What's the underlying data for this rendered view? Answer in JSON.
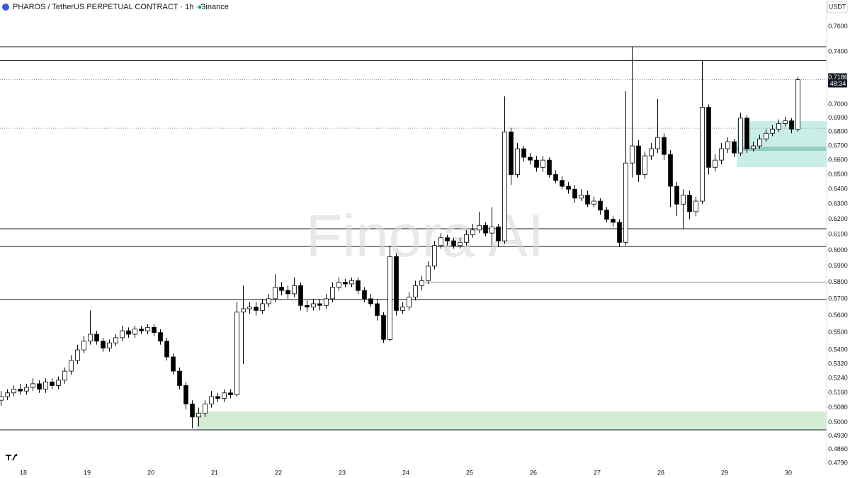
{
  "chart_data": {
    "type": "candlestick",
    "title": "PHAROS / TetherUS PERPETUAL CONTRACT · 1h · Binance",
    "axis_unit": "USDT",
    "watermark": "Finora AI",
    "last_price": 0.7186,
    "countdown": "48:34",
    "log_scale": true,
    "up_color": "#ffffff",
    "down_color": "#000000",
    "wick_color": "#000000",
    "xlim": [
      17.633,
      30.6
    ],
    "ylim": [
      0.4769,
      0.7818
    ],
    "xticks": [
      18,
      19,
      20,
      21,
      22,
      23,
      24,
      25,
      26,
      27,
      28,
      29,
      30
    ],
    "yticks": [
      {
        "value": 0.76,
        "label": "0.7600"
      },
      {
        "value": 0.74,
        "label": "0.7400"
      },
      {
        "value": 0.7,
        "label": "0.7000"
      },
      {
        "value": 0.69,
        "label": "0.6900"
      },
      {
        "value": 0.68,
        "label": "0.6800"
      },
      {
        "value": 0.67,
        "label": "0.6700"
      },
      {
        "value": 0.66,
        "label": "0.6600"
      },
      {
        "value": 0.65,
        "label": "0.6500"
      },
      {
        "value": 0.64,
        "label": "0.6400"
      },
      {
        "value": 0.63,
        "label": "0.6300"
      },
      {
        "value": 0.62,
        "label": "0.6200"
      },
      {
        "value": 0.61,
        "label": "0.6100"
      },
      {
        "value": 0.6,
        "label": "0.6000"
      },
      {
        "value": 0.59,
        "label": "0.5900"
      },
      {
        "value": 0.58,
        "label": "0.5800"
      },
      {
        "value": 0.57,
        "label": "0.5700"
      },
      {
        "value": 0.56,
        "label": "0.5600"
      },
      {
        "value": 0.55,
        "label": "0.5500"
      },
      {
        "value": 0.54,
        "label": "0.5400"
      },
      {
        "value": 0.532,
        "label": "0.5320"
      },
      {
        "value": 0.524,
        "label": "0.5240"
      },
      {
        "value": 0.516,
        "label": "0.5160"
      },
      {
        "value": 0.508,
        "label": "0.5080"
      },
      {
        "value": 0.5,
        "label": "0.5000"
      },
      {
        "value": 0.493,
        "label": "0.4930"
      },
      {
        "value": 0.486,
        "label": "0.4860"
      },
      {
        "value": 0.479,
        "label": "0.4790"
      }
    ],
    "levels": [
      0.7441,
      0.7334,
      0.6138,
      0.6024,
      0.5696,
      0.4962
    ],
    "dotted_levels": [
      0.7186,
      0.6826
    ],
    "zones": [
      {
        "x": 20.72,
        "low": 0.4962,
        "high": 0.5059,
        "color": "#d4ecd4"
      },
      {
        "x": 29.19,
        "low": 0.6551,
        "high": 0.6879,
        "color": "#c9eee6"
      },
      {
        "x": 29.19,
        "low": 0.6665,
        "high": 0.6695,
        "color": "#8ecfc0"
      },
      {
        "x": 24.3,
        "low": 0.5795,
        "high": 0.5804,
        "color": "#c8c8d0"
      }
    ],
    "x": [
      17.65,
      17.75,
      17.85,
      17.95,
      18.05,
      18.15,
      18.25,
      18.35,
      18.45,
      18.55,
      18.65,
      18.75,
      18.85,
      18.95,
      19.05,
      19.15,
      19.25,
      19.35,
      19.45,
      19.55,
      19.65,
      19.75,
      19.85,
      19.95,
      20.05,
      20.15,
      20.25,
      20.35,
      20.45,
      20.55,
      20.65,
      20.75,
      20.85,
      20.95,
      21.05,
      21.15,
      21.25,
      21.35,
      21.45,
      21.55,
      21.65,
      21.75,
      21.85,
      21.95,
      22.05,
      22.15,
      22.25,
      22.35,
      22.45,
      22.55,
      22.65,
      22.75,
      22.85,
      22.95,
      23.05,
      23.15,
      23.25,
      23.35,
      23.45,
      23.55,
      23.65,
      23.75,
      23.85,
      23.95,
      24.05,
      24.15,
      24.25,
      24.35,
      24.45,
      24.55,
      24.65,
      24.75,
      24.85,
      24.95,
      25.05,
      25.15,
      25.25,
      25.35,
      25.45,
      25.55,
      25.65,
      25.75,
      25.85,
      25.95,
      26.05,
      26.15,
      26.25,
      26.35,
      26.45,
      26.55,
      26.65,
      26.75,
      26.85,
      26.95,
      27.05,
      27.15,
      27.25,
      27.35,
      27.45,
      27.55,
      27.65,
      27.75,
      27.85,
      27.95,
      28.05,
      28.15,
      28.25,
      28.35,
      28.45,
      28.55,
      28.65,
      28.75,
      28.85,
      28.95,
      29.05,
      29.15,
      29.25,
      29.35,
      29.45,
      29.55,
      29.65,
      29.75,
      29.85,
      29.95,
      30.05,
      30.15
    ],
    "open": [
      0.512,
      0.514,
      0.516,
      0.518,
      0.517,
      0.519,
      0.521,
      0.518,
      0.522,
      0.52,
      0.523,
      0.528,
      0.534,
      0.54,
      0.545,
      0.549,
      0.545,
      0.541,
      0.544,
      0.547,
      0.551,
      0.549,
      0.552,
      0.551,
      0.553,
      0.55,
      0.545,
      0.536,
      0.528,
      0.52,
      0.51,
      0.503,
      0.505,
      0.51,
      0.514,
      0.513,
      0.516,
      0.515,
      0.562,
      0.564,
      0.565,
      0.563,
      0.567,
      0.57,
      0.577,
      0.575,
      0.573,
      0.578,
      0.566,
      0.565,
      0.567,
      0.566,
      0.57,
      0.577,
      0.58,
      0.579,
      0.581,
      0.575,
      0.57,
      0.567,
      0.56,
      0.546,
      0.596,
      0.563,
      0.565,
      0.571,
      0.578,
      0.581,
      0.59,
      0.603,
      0.608,
      0.606,
      0.603,
      0.605,
      0.61,
      0.613,
      0.616,
      0.611,
      0.615,
      0.606,
      0.68,
      0.65,
      0.668,
      0.662,
      0.66,
      0.655,
      0.66,
      0.65,
      0.646,
      0.642,
      0.64,
      0.634,
      0.636,
      0.63,
      0.632,
      0.626,
      0.62,
      0.618,
      0.605,
      0.658,
      0.67,
      0.65,
      0.663,
      0.668,
      0.676,
      0.664,
      0.642,
      0.63,
      0.636,
      0.625,
      0.632,
      0.698,
      0.655,
      0.66,
      0.668,
      0.673,
      0.665,
      0.69,
      0.668,
      0.67,
      0.675,
      0.679,
      0.682,
      0.686,
      0.688,
      0.682
    ],
    "high": [
      0.517,
      0.518,
      0.52,
      0.521,
      0.521,
      0.524,
      0.523,
      0.524,
      0.524,
      0.525,
      0.53,
      0.537,
      0.543,
      0.548,
      0.563,
      0.551,
      0.547,
      0.546,
      0.549,
      0.554,
      0.553,
      0.554,
      0.554,
      0.555,
      0.555,
      0.552,
      0.547,
      0.538,
      0.53,
      0.522,
      0.512,
      0.508,
      0.512,
      0.517,
      0.516,
      0.518,
      0.518,
      0.568,
      0.578,
      0.568,
      0.568,
      0.57,
      0.573,
      0.585,
      0.58,
      0.578,
      0.583,
      0.58,
      0.569,
      0.57,
      0.57,
      0.573,
      0.58,
      0.583,
      0.582,
      0.583,
      0.583,
      0.577,
      0.573,
      0.57,
      0.562,
      0.603,
      0.598,
      0.568,
      0.574,
      0.581,
      0.584,
      0.593,
      0.606,
      0.611,
      0.61,
      0.608,
      0.608,
      0.613,
      0.617,
      0.625,
      0.618,
      0.628,
      0.617,
      0.706,
      0.683,
      0.672,
      0.67,
      0.665,
      0.663,
      0.663,
      0.662,
      0.653,
      0.649,
      0.645,
      0.643,
      0.64,
      0.639,
      0.635,
      0.634,
      0.628,
      0.622,
      0.62,
      0.71,
      0.744,
      0.674,
      0.666,
      0.672,
      0.704,
      0.679,
      0.667,
      0.645,
      0.64,
      0.639,
      0.635,
      0.733,
      0.7,
      0.664,
      0.672,
      0.676,
      0.675,
      0.694,
      0.692,
      0.673,
      0.678,
      0.682,
      0.685,
      0.689,
      0.691,
      0.69,
      0.721
    ],
    "low": [
      0.509,
      0.512,
      0.514,
      0.515,
      0.515,
      0.517,
      0.516,
      0.516,
      0.518,
      0.518,
      0.521,
      0.526,
      0.532,
      0.538,
      0.543,
      0.543,
      0.539,
      0.539,
      0.542,
      0.545,
      0.547,
      0.547,
      0.549,
      0.549,
      0.548,
      0.543,
      0.534,
      0.526,
      0.518,
      0.507,
      0.497,
      0.498,
      0.503,
      0.508,
      0.511,
      0.511,
      0.513,
      0.514,
      0.532,
      0.561,
      0.56,
      0.561,
      0.565,
      0.568,
      0.572,
      0.57,
      0.571,
      0.563,
      0.562,
      0.563,
      0.563,
      0.564,
      0.568,
      0.575,
      0.577,
      0.577,
      0.573,
      0.568,
      0.565,
      0.557,
      0.544,
      0.545,
      0.56,
      0.561,
      0.563,
      0.569,
      0.575,
      0.579,
      0.588,
      0.601,
      0.603,
      0.601,
      0.601,
      0.603,
      0.608,
      0.611,
      0.609,
      0.603,
      0.602,
      0.604,
      0.643,
      0.648,
      0.659,
      0.657,
      0.652,
      0.652,
      0.648,
      0.644,
      0.64,
      0.637,
      0.631,
      0.632,
      0.628,
      0.628,
      0.623,
      0.618,
      0.615,
      0.602,
      0.603,
      0.648,
      0.645,
      0.647,
      0.66,
      0.665,
      0.66,
      0.628,
      0.622,
      0.614,
      0.62,
      0.622,
      0.63,
      0.65,
      0.652,
      0.657,
      0.665,
      0.662,
      0.663,
      0.665,
      0.666,
      0.668,
      0.673,
      0.677,
      0.68,
      0.684,
      0.679,
      0.68
    ],
    "close": [
      0.514,
      0.516,
      0.518,
      0.517,
      0.519,
      0.521,
      0.518,
      0.522,
      0.52,
      0.523,
      0.528,
      0.534,
      0.54,
      0.545,
      0.549,
      0.545,
      0.541,
      0.544,
      0.547,
      0.551,
      0.549,
      0.552,
      0.551,
      0.553,
      0.55,
      0.545,
      0.536,
      0.528,
      0.52,
      0.51,
      0.503,
      0.505,
      0.51,
      0.514,
      0.513,
      0.516,
      0.515,
      0.562,
      0.564,
      0.565,
      0.563,
      0.567,
      0.57,
      0.577,
      0.575,
      0.573,
      0.578,
      0.566,
      0.565,
      0.567,
      0.566,
      0.57,
      0.577,
      0.58,
      0.579,
      0.581,
      0.575,
      0.57,
      0.567,
      0.56,
      0.546,
      0.596,
      0.563,
      0.565,
      0.571,
      0.578,
      0.581,
      0.59,
      0.603,
      0.608,
      0.606,
      0.603,
      0.605,
      0.61,
      0.613,
      0.616,
      0.611,
      0.615,
      0.606,
      0.68,
      0.65,
      0.668,
      0.662,
      0.66,
      0.655,
      0.66,
      0.65,
      0.646,
      0.642,
      0.64,
      0.634,
      0.636,
      0.63,
      0.632,
      0.626,
      0.62,
      0.618,
      0.605,
      0.658,
      0.67,
      0.65,
      0.663,
      0.668,
      0.676,
      0.664,
      0.642,
      0.63,
      0.636,
      0.625,
      0.632,
      0.698,
      0.655,
      0.66,
      0.668,
      0.673,
      0.665,
      0.69,
      0.668,
      0.67,
      0.675,
      0.679,
      0.682,
      0.686,
      0.688,
      0.682,
      0.7186
    ]
  }
}
